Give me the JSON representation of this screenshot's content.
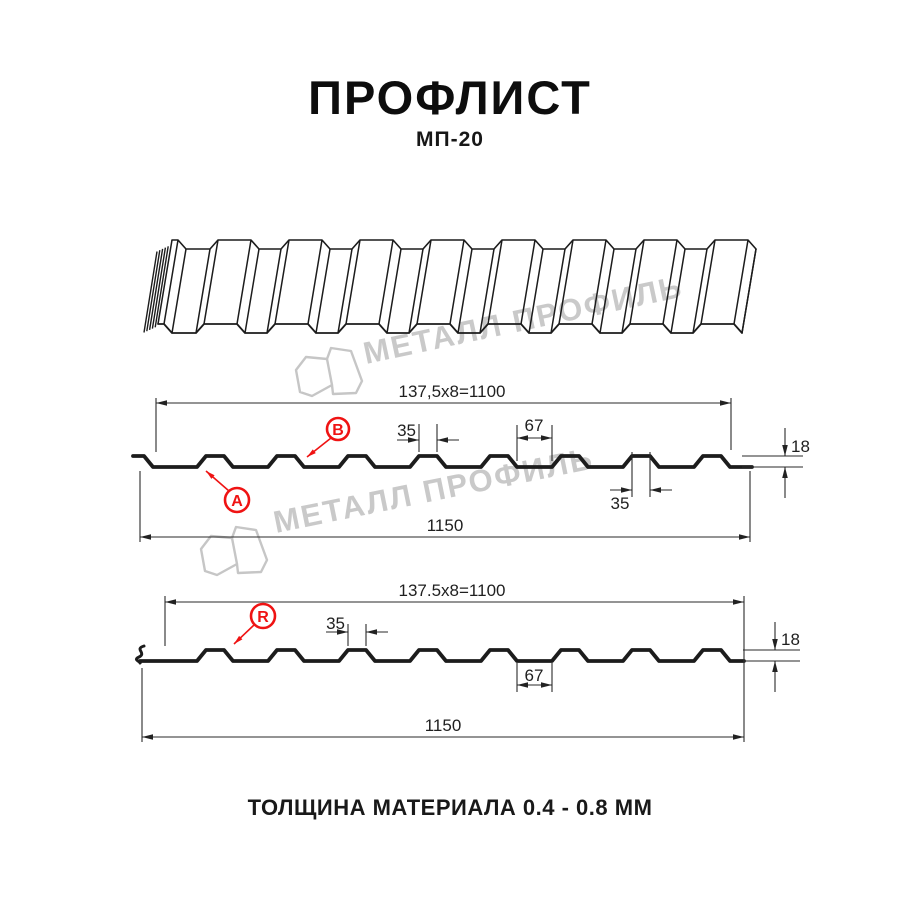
{
  "page": {
    "title": "ПРОФЛИСТ",
    "subtitle": "МП-20",
    "footer": "ТОЛЩИНА МАТЕРИАЛА 0.4 - 0.8 ММ"
  },
  "watermark": {
    "text": "МЕТАЛЛ ПРОФИЛЬ"
  },
  "colors": {
    "accent_red": "#ef1313",
    "line_black": "#1c1c1c",
    "watermark_gray": "#c9c9c9"
  },
  "section1": {
    "module_width": "137,5x8=1100",
    "crest_top_width": "35",
    "valley_width": "67",
    "profile_height": "18",
    "crest_bottom_width": "35",
    "overall_width": "1150",
    "point_a": "A",
    "point_b": "B"
  },
  "section2": {
    "module_width": "137.5x8=1100",
    "crest_top_width": "35",
    "profile_height": "18",
    "valley_width": "67",
    "overall_width": "1150",
    "point_r": "R"
  }
}
